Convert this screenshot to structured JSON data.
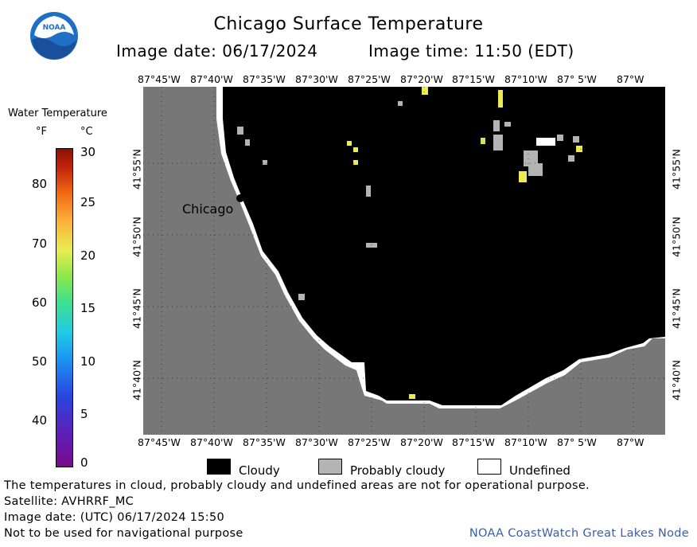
{
  "header": {
    "title": "Chicago Surface Temperature",
    "image_date_label": "Image date: 06/17/2024",
    "image_time_label": "Image time: 11:50 (EDT)"
  },
  "logo": {
    "name": "noaa-logo",
    "text": "NOAA"
  },
  "colorbar": {
    "title": "Water Temperature",
    "unit_f": "°F",
    "unit_c": "°C",
    "fahrenheit_labels": [
      "40",
      "50",
      "60",
      "70",
      "80"
    ],
    "celsius_labels": [
      "0",
      "5",
      "10",
      "15",
      "20",
      "25",
      "30"
    ]
  },
  "map": {
    "longitude_labels": [
      "87°45'W",
      "87°40'W",
      "87°35'W",
      "87°30'W",
      "87°25'W",
      "87°20'W",
      "87°15'W",
      "87°10'W",
      "87° 5'W",
      "87°W"
    ],
    "latitude_labels": [
      "41°55'N",
      "41°50'N",
      "41°45'N",
      "41°40'N"
    ],
    "city_label": "Chicago",
    "land_color": "#777777",
    "water_cloud_color": "#000000",
    "probably_cloudy_color": "#b4b4b4",
    "undefined_color": "#ffffff"
  },
  "legend": {
    "items": [
      {
        "label": "Cloudy",
        "color": "#000000"
      },
      {
        "label": "Probably cloudy",
        "color": "#b4b4b4"
      },
      {
        "label": "Undefined",
        "color": "#ffffff"
      }
    ]
  },
  "footer": {
    "note": "The temperatures in cloud, probably cloudy and undefined areas are not for operational purpose.",
    "satellite": "Satellite: AVHRRF_MC",
    "utc_date": "Image date: (UTC) 06/17/2024  15:50",
    "nav_warning": "Not to be used for navigational purpose",
    "credit": "NOAA CoastWatch Great Lakes Node"
  }
}
